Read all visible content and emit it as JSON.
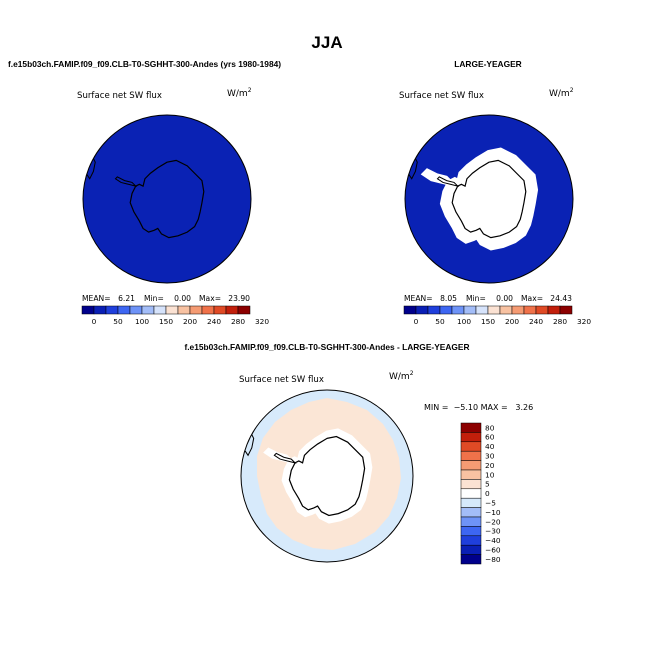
{
  "season": "JJA",
  "panel_top_left": {
    "case_title": "f.e15b03ch.FAMIP.f09_f09.CLB-T0-SGHHT-300-Andes (yrs 1980-1984)",
    "variable": "Surface net SW flux",
    "units": "W/m",
    "units_exp": "2",
    "stats": {
      "mean_label": "MEAN=",
      "mean": "6.21",
      "min_label": "Min=",
      "min": "0.00",
      "max_label": "Max=",
      "max": "23.90"
    }
  },
  "panel_top_right": {
    "case_title": "LARGE-YEAGER",
    "variable": "Surface net SW flux",
    "units": "W/m",
    "units_exp": "2",
    "stats": {
      "mean_label": "MEAN=",
      "mean": "8.05",
      "min_label": "Min=",
      "min": "0.00",
      "max_label": "Max=",
      "max": "24.43"
    }
  },
  "panel_diff": {
    "case_title": "f.e15b03ch.FAMIP.f09_f09.CLB-T0-SGHHT-300-Andes - LARGE-YEAGER",
    "variable": "Surface net SW flux",
    "units": "W/m",
    "units_exp": "2",
    "minmax": "MIN =  −5.10 MAX =   3.26"
  },
  "colorbar_abs": {
    "ticks": [
      "0",
      "50",
      "100",
      "150",
      "200",
      "240",
      "280",
      "320"
    ],
    "colors": [
      "#00008b",
      "#0a1fb5",
      "#1f3fdc",
      "#3d66f2",
      "#6e93f7",
      "#a3bdf8",
      "#d6e3fb",
      "#fbe2d3",
      "#f8c2a2",
      "#f59b73",
      "#f0724a",
      "#e04a25",
      "#c21f0b",
      "#8c0000"
    ]
  },
  "colorbar_diff": {
    "labels": [
      "80",
      "60",
      "40",
      "30",
      "20",
      "10",
      "5",
      "0",
      "−5",
      "−10",
      "−20",
      "−30",
      "−40",
      "−60",
      "−80"
    ],
    "colors": [
      "#8c0000",
      "#c21f0b",
      "#e04a25",
      "#f0724a",
      "#f59b73",
      "#f8c2a2",
      "#fbe2d3",
      "#ffffff",
      "#d6e9fb",
      "#a3bdf8",
      "#6e93f7",
      "#3d66f2",
      "#1f3fdc",
      "#0a1fb5",
      "#00008b"
    ]
  },
  "map_colors": {
    "ocean_abs": "#0a22b4",
    "land": "#ffffff",
    "diff_pos": "#fbe6d6",
    "diff_neg": "#d7eafb",
    "coast": "#000000"
  }
}
